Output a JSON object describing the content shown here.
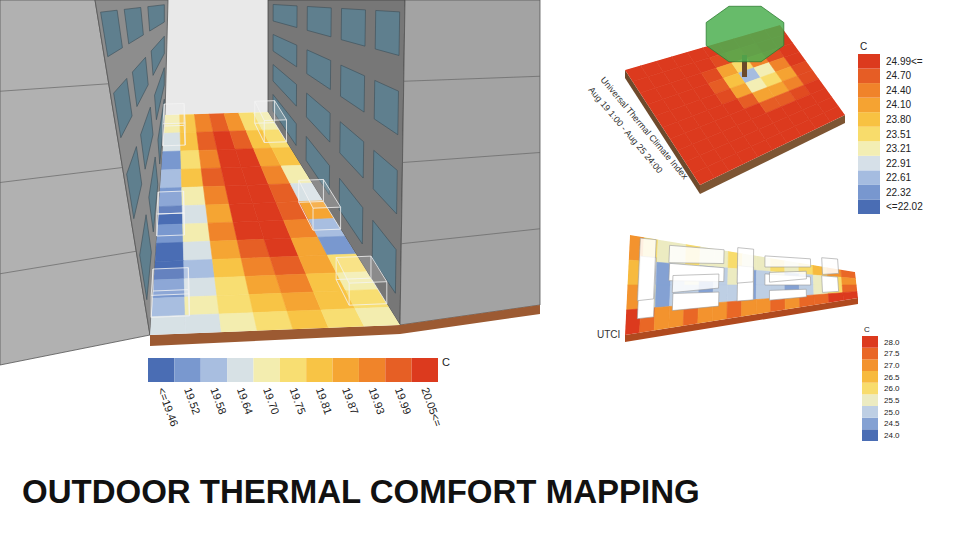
{
  "title": "OUTDOOR THERMAL COMFORT MAPPING",
  "chart_data": [
    {
      "type": "heatmap",
      "cells": [
        [
          19.7,
          19.8,
          19.93,
          19.99,
          19.9,
          19.75,
          19.7
        ],
        [
          19.64,
          19.81,
          19.99,
          20.05,
          19.99,
          19.81,
          19.75
        ],
        [
          19.52,
          19.75,
          19.93,
          20.05,
          20.05,
          19.87,
          19.81
        ],
        [
          19.58,
          19.81,
          19.99,
          20.05,
          20.05,
          19.93,
          19.7
        ],
        [
          19.52,
          19.7,
          19.93,
          20.05,
          20.05,
          19.99,
          19.64
        ],
        [
          19.46,
          19.64,
          19.87,
          20.05,
          20.05,
          19.99,
          19.87
        ],
        [
          19.52,
          19.7,
          19.93,
          20.05,
          20.05,
          19.93,
          19.58
        ],
        [
          19.46,
          19.64,
          19.87,
          19.99,
          20.05,
          19.87,
          19.52
        ],
        [
          19.46,
          19.58,
          19.81,
          19.93,
          19.99,
          19.87,
          19.75
        ],
        [
          19.52,
          19.64,
          19.75,
          19.87,
          19.93,
          19.81,
          19.7
        ],
        [
          19.58,
          19.7,
          19.75,
          19.81,
          19.87,
          19.81,
          19.75
        ],
        [
          19.64,
          19.64,
          19.7,
          19.75,
          19.81,
          19.75,
          19.7
        ]
      ],
      "colorbar": {
        "unit": "C",
        "ticks": [
          {
            "value": 19.46,
            "label": "<=19.46"
          },
          19.52,
          19.58,
          19.64,
          {
            "value": 19.7,
            "label": "19.70"
          },
          19.75,
          19.81,
          19.87,
          19.93,
          19.99,
          {
            "value": 20.05,
            "label": "20.05<="
          }
        ]
      }
    },
    {
      "type": "heatmap",
      "title": "Universal Thermal Climate Index",
      "subtitle": "Aug 19 1:00 - Aug 25 24:00",
      "cells": [
        [
          24.99,
          24.99,
          24.99,
          24.99,
          24.99,
          24.99,
          24.99,
          24.99,
          24.99,
          24.99
        ],
        [
          24.99,
          24.99,
          24.99,
          24.99,
          24.99,
          24.85,
          24.7,
          24.85,
          24.99,
          24.99
        ],
        [
          24.99,
          24.99,
          24.99,
          24.99,
          24.85,
          24.1,
          23.51,
          24.4,
          24.85,
          24.99
        ],
        [
          24.99,
          24.99,
          24.99,
          24.99,
          24.7,
          23.8,
          22.61,
          23.21,
          24.4,
          24.99
        ],
        [
          24.99,
          24.99,
          24.99,
          24.99,
          24.85,
          24.1,
          23.21,
          23.51,
          24.1,
          24.85
        ],
        [
          24.99,
          24.99,
          24.99,
          24.99,
          24.99,
          24.7,
          24.1,
          24.1,
          24.4,
          24.85
        ],
        [
          24.99,
          24.99,
          24.99,
          24.99,
          24.99,
          24.99,
          24.7,
          24.7,
          24.85,
          24.99
        ],
        [
          24.99,
          24.99,
          24.99,
          24.99,
          24.99,
          24.99,
          24.99,
          24.99,
          24.99,
          24.99
        ],
        [
          24.99,
          24.99,
          24.99,
          24.99,
          24.99,
          24.99,
          24.99,
          24.99,
          24.99,
          24.99
        ],
        [
          24.99,
          24.99,
          24.99,
          24.99,
          24.99,
          24.99,
          24.99,
          24.99,
          24.99,
          24.99
        ]
      ],
      "colorbar": {
        "unit": "C",
        "ticks": [
          {
            "value": 22.02,
            "label": "<=22.02"
          },
          22.32,
          22.61,
          22.91,
          23.21,
          23.51,
          {
            "value": 23.8,
            "label": "23.80"
          },
          {
            "value": 24.1,
            "label": "24.10"
          },
          {
            "value": 24.4,
            "label": "24.40"
          },
          {
            "value": 24.7,
            "label": "24.70"
          },
          {
            "value": 24.99,
            "label": "24.99<="
          }
        ]
      }
    },
    {
      "type": "heatmap",
      "title": "UTCI",
      "cells": [
        [
          27.0,
          26.0,
          25.5,
          25.5,
          26.0,
          25.5,
          25.5,
          26.0,
          25.5,
          25.5,
          26.0,
          25.5,
          26.0,
          26.5,
          27.0,
          27.5
        ],
        [
          26.5,
          25.0,
          24.5,
          25.0,
          25.5,
          24.5,
          25.0,
          25.5,
          24.5,
          25.0,
          25.5,
          24.5,
          25.0,
          25.5,
          26.0,
          27.0
        ],
        [
          27.0,
          25.5,
          24.5,
          25.0,
          25.0,
          24.5,
          25.0,
          25.0,
          24.5,
          25.0,
          25.0,
          24.5,
          25.0,
          25.5,
          26.0,
          27.5
        ],
        [
          28.0,
          27.5,
          27.0,
          27.0,
          27.5,
          27.0,
          27.0,
          27.5,
          27.0,
          27.0,
          27.5,
          27.0,
          27.5,
          27.5,
          28.0,
          28.0
        ]
      ],
      "colorbar": {
        "unit": "C",
        "ticks": [
          {
            "value": 24.0,
            "label": "24.0"
          },
          24.5,
          {
            "value": 25.0,
            "label": "25.0"
          },
          25.5,
          {
            "value": 26.0,
            "label": "26.0"
          },
          26.5,
          {
            "value": 27.0,
            "label": "27.0"
          },
          27.5,
          {
            "value": 28.0,
            "label": "28.0"
          }
        ]
      }
    }
  ]
}
